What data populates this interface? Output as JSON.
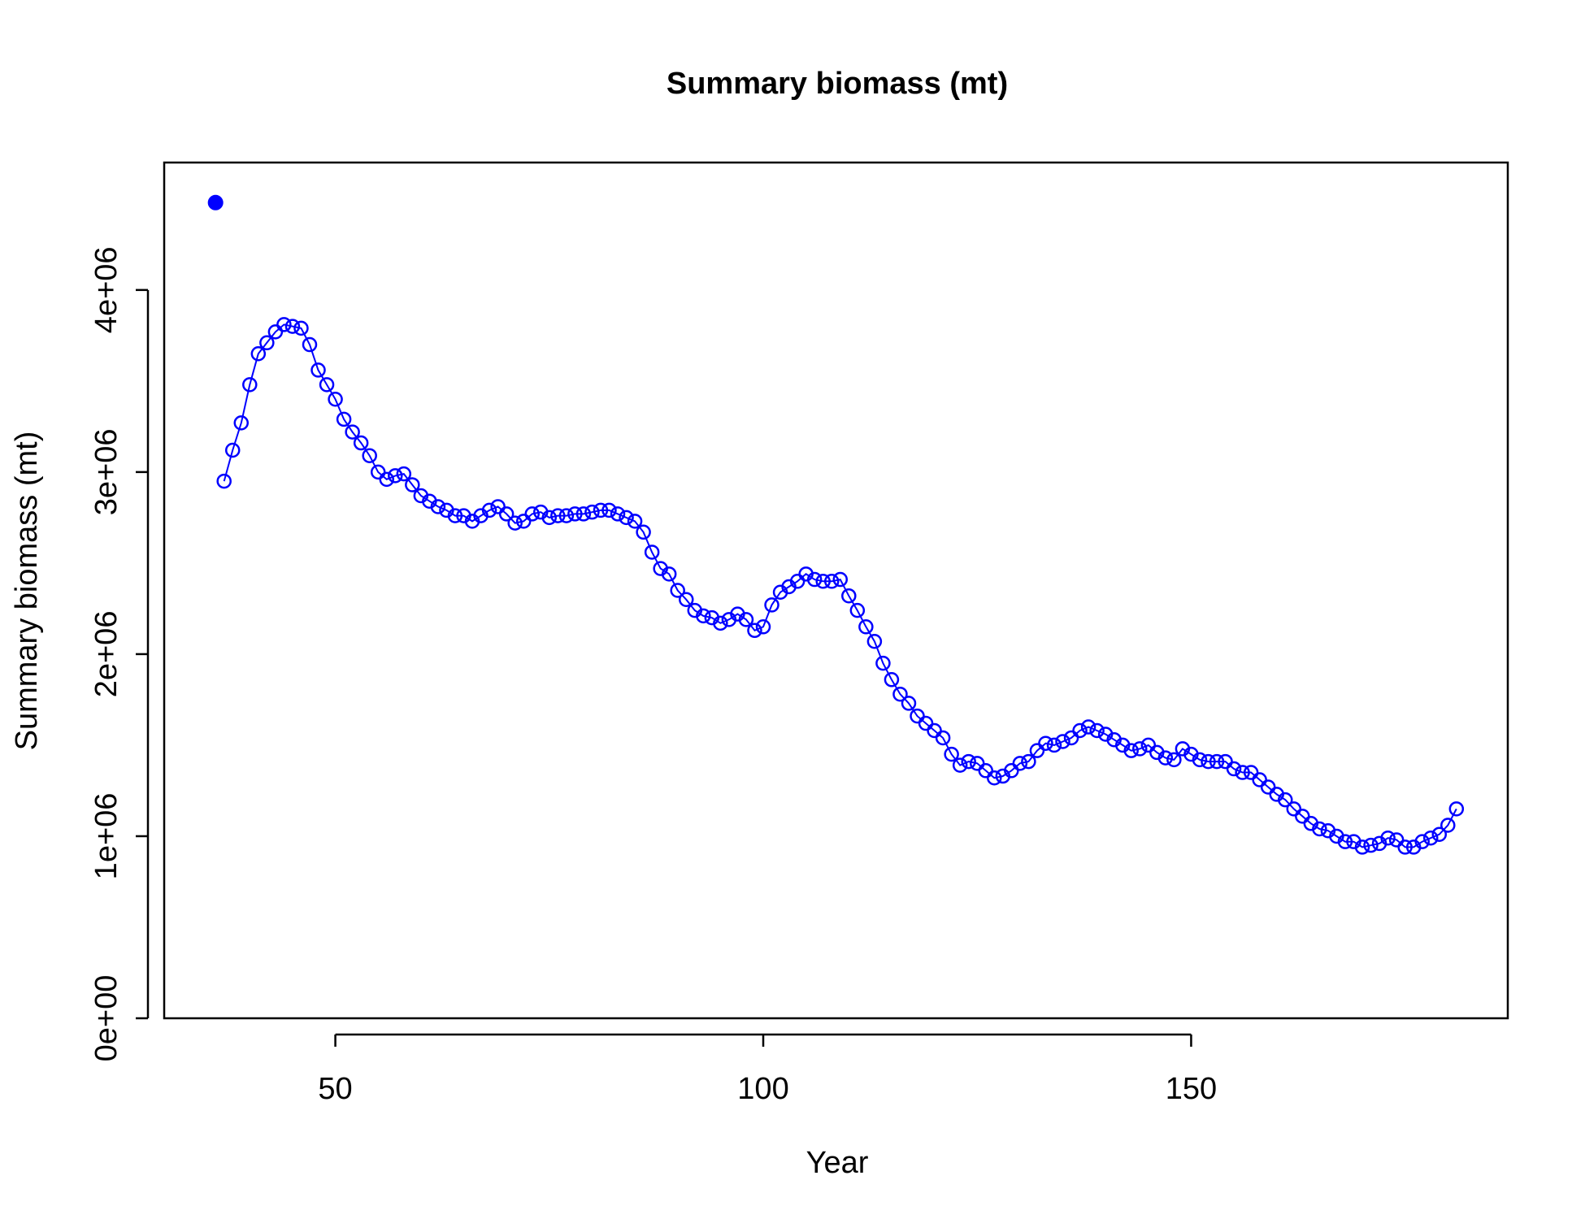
{
  "chart_data": {
    "type": "line",
    "title": "Summary biomass (mt)",
    "xlabel": "Year",
    "ylabel": "Summary biomass (mt)",
    "xlim": [
      30,
      187
    ],
    "ylim": [
      0,
      4700000
    ],
    "x_ticks": [
      50,
      100,
      150
    ],
    "x_tick_labels": [
      "50",
      "100",
      "150"
    ],
    "y_ticks": [
      0,
      1000000,
      2000000,
      3000000,
      4000000
    ],
    "y_tick_labels": [
      "0e+00",
      "1e+06",
      "2e+06",
      "3e+06",
      "4e+06"
    ],
    "grid": false,
    "legend": "none",
    "series_color": "#0000ff",
    "virgin_point": {
      "x": 36,
      "y": 4480000
    },
    "series": [
      {
        "marker": "open-circle",
        "x": [
          37,
          38,
          39,
          40,
          41,
          42,
          43,
          44,
          45,
          46,
          47,
          48,
          49,
          50,
          51,
          52,
          53,
          54,
          55,
          56,
          57,
          58,
          59,
          60,
          61,
          62,
          63,
          64,
          65,
          66,
          67,
          68,
          69,
          70,
          71,
          72,
          73,
          74,
          75,
          76,
          77,
          78,
          79,
          80,
          81,
          82,
          83,
          84,
          85,
          86,
          87,
          88,
          89,
          90,
          91,
          92,
          93,
          94,
          95,
          96,
          97,
          98,
          99,
          100,
          101,
          102,
          103,
          104,
          105,
          106,
          107,
          108,
          109,
          110,
          111,
          112,
          113,
          114,
          115,
          116,
          117,
          118,
          119,
          120,
          121,
          122,
          123,
          124,
          125,
          126,
          127,
          128,
          129,
          130,
          131,
          132,
          133,
          134,
          135,
          136,
          137,
          138,
          139,
          140,
          141,
          142,
          143,
          144,
          145,
          146,
          147,
          148,
          149,
          150,
          151,
          152,
          153,
          154,
          155,
          156,
          157,
          158,
          159,
          160,
          161,
          162,
          163,
          164,
          165,
          166,
          167,
          168,
          169,
          170,
          171,
          172,
          173,
          174,
          175,
          176,
          177,
          178,
          179,
          180,
          181
        ],
        "values": [
          2950000,
          3120000,
          3270000,
          3480000,
          3650000,
          3710000,
          3770000,
          3810000,
          3800000,
          3790000,
          3700000,
          3560000,
          3480000,
          3400000,
          3290000,
          3220000,
          3160000,
          3090000,
          3000000,
          2960000,
          2980000,
          2990000,
          2930000,
          2870000,
          2840000,
          2810000,
          2790000,
          2760000,
          2760000,
          2730000,
          2760000,
          2790000,
          2810000,
          2770000,
          2720000,
          2730000,
          2770000,
          2780000,
          2750000,
          2760000,
          2760000,
          2770000,
          2770000,
          2780000,
          2790000,
          2790000,
          2770000,
          2750000,
          2730000,
          2670000,
          2560000,
          2470000,
          2440000,
          2350000,
          2300000,
          2240000,
          2210000,
          2200000,
          2170000,
          2190000,
          2220000,
          2190000,
          2130000,
          2150000,
          2270000,
          2340000,
          2370000,
          2400000,
          2440000,
          2410000,
          2400000,
          2400000,
          2410000,
          2320000,
          2240000,
          2150000,
          2070000,
          1950000,
          1860000,
          1780000,
          1730000,
          1660000,
          1620000,
          1580000,
          1540000,
          1450000,
          1390000,
          1410000,
          1400000,
          1360000,
          1320000,
          1330000,
          1360000,
          1400000,
          1410000,
          1470000,
          1510000,
          1500000,
          1520000,
          1540000,
          1580000,
          1600000,
          1580000,
          1560000,
          1530000,
          1500000,
          1470000,
          1480000,
          1500000,
          1460000,
          1430000,
          1420000,
          1480000,
          1450000,
          1420000,
          1410000,
          1410000,
          1410000,
          1370000,
          1350000,
          1350000,
          1310000,
          1270000,
          1230000,
          1200000,
          1150000,
          1110000,
          1070000,
          1040000,
          1030000,
          1000000,
          970000,
          970000,
          940000,
          950000,
          960000,
          990000,
          980000,
          940000,
          940000,
          970000,
          990000,
          1010000,
          1060000,
          1150000
        ]
      }
    ]
  }
}
